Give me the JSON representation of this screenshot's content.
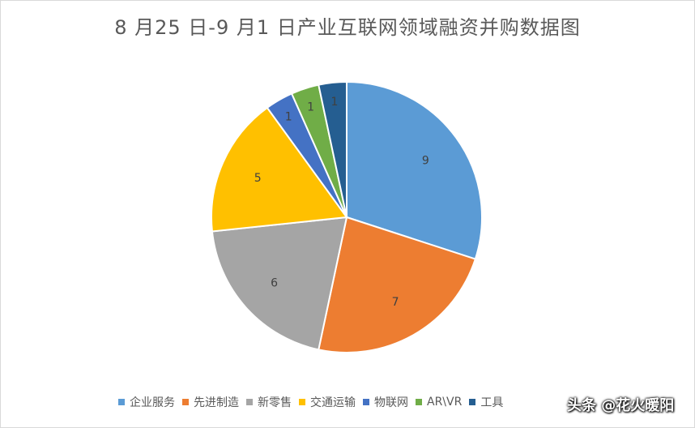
{
  "chart_data": {
    "type": "pie",
    "title": "8 月25 日-9 月1 日产业互联网领域融资并购数据图",
    "categories": [
      "企业服务",
      "先进制造",
      "新零售",
      "交通运输",
      "物联网",
      "AR\\VR",
      "工具"
    ],
    "values": [
      9,
      7,
      6,
      5,
      1,
      1,
      1
    ],
    "colors": [
      "#5b9bd5",
      "#ed7d31",
      "#a5a5a5",
      "#ffc000",
      "#4472c4",
      "#70ad47",
      "#255e91"
    ],
    "legend_position": "bottom",
    "data_labels": true
  },
  "watermark": "头条 @花火暖阳"
}
